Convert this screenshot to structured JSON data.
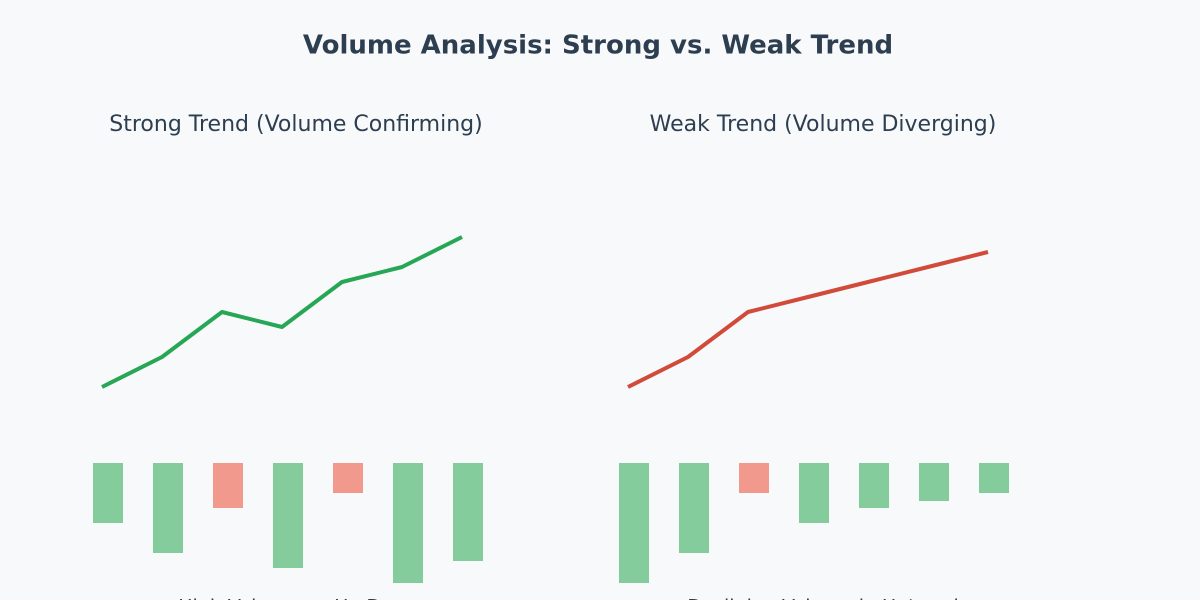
{
  "title": "Volume Analysis: Strong vs. Weak Trend",
  "chart_data": [
    {
      "type": "line",
      "title": "Strong Trend (Volume Confirming)",
      "values": [
        13,
        43,
        88,
        73,
        118,
        133,
        163
      ],
      "color": "#27a756",
      "volume": {
        "values": [
          60,
          90,
          45,
          105,
          30,
          120,
          98
        ],
        "colors": [
          "#84cc9c",
          "#84cc9c",
          "#f1998d",
          "#84cc9c",
          "#f1998d",
          "#84cc9c",
          "#84cc9c"
        ]
      },
      "caption": "High Volume on Up Days"
    },
    {
      "type": "line",
      "title": "Weak Trend (Volume Diverging)",
      "values": [
        13,
        43,
        88,
        103,
        118,
        133,
        148
      ],
      "color": "#d24a3a",
      "volume": {
        "values": [
          120,
          90,
          30,
          60,
          45,
          38,
          30
        ],
        "colors": [
          "#84cc9c",
          "#84cc9c",
          "#f1998d",
          "#84cc9c",
          "#84cc9c",
          "#84cc9c",
          "#84cc9c"
        ]
      },
      "caption": "Declining Volume in Uptrend"
    }
  ]
}
